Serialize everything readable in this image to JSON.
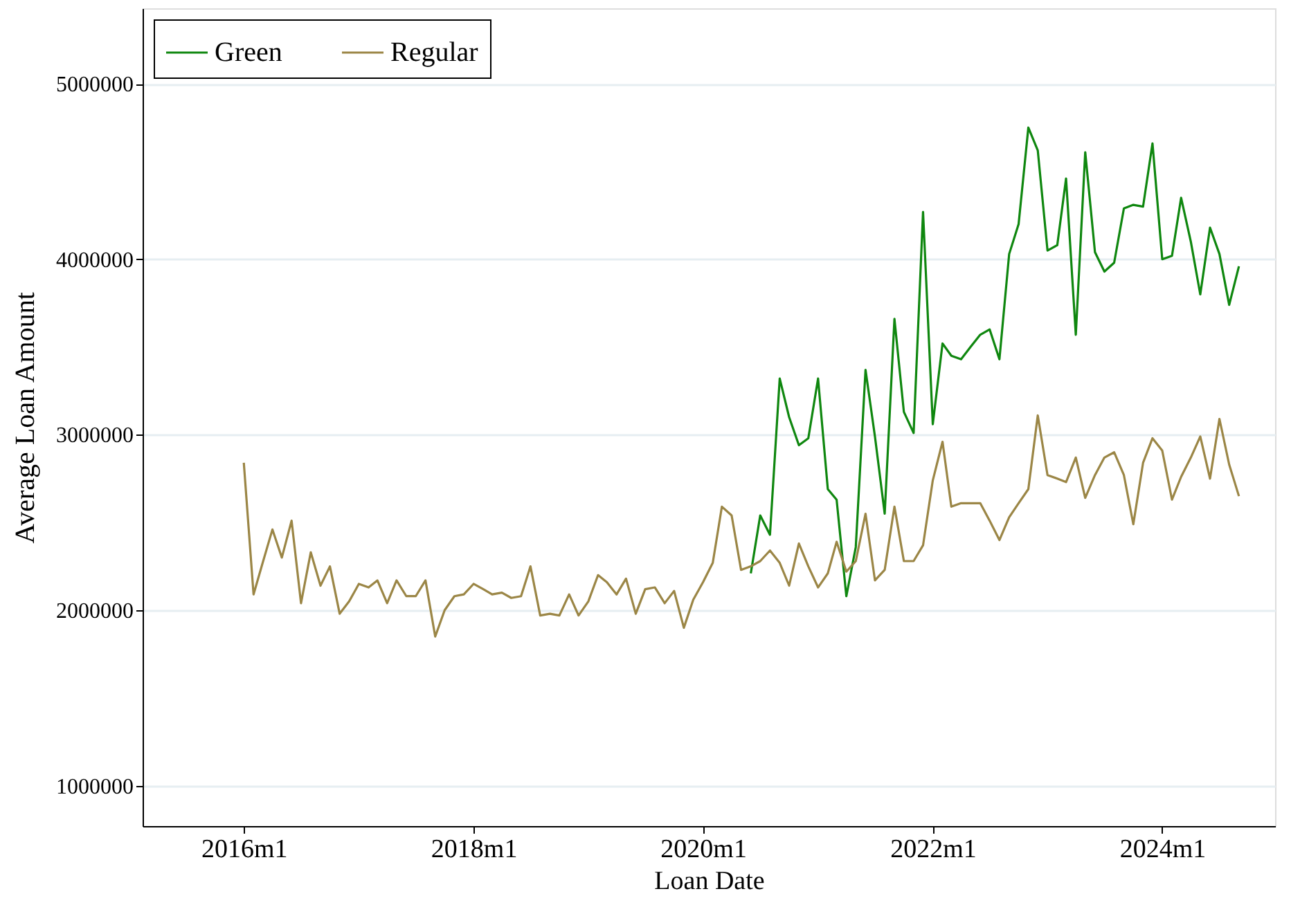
{
  "chart_data": {
    "type": "line",
    "xlabel": "Loan Date",
    "ylabel": "Average Loan Amount",
    "xlim": [
      "2015-02-13",
      "2024-12-25"
    ],
    "xticks": [
      {
        "value": "2016-01",
        "label": "2016m1"
      },
      {
        "value": "2018-01",
        "label": "2018m1"
      },
      {
        "value": "2020-01",
        "label": "2020m1"
      },
      {
        "value": "2022-01",
        "label": "2022m1"
      },
      {
        "value": "2024-01",
        "label": "2024m1"
      }
    ],
    "ylim": [
      770000,
      5430000
    ],
    "yticks": [
      1000000,
      2000000,
      3000000,
      4000000,
      5000000
    ],
    "grid": "y",
    "legend": "top left",
    "line_style": "solid",
    "marker": "none",
    "series": [
      {
        "name": "Green",
        "color": "#0f870f",
        "x": [
          "2020-06",
          "2020-07",
          "2020-08",
          "2020-09",
          "2020-10",
          "2020-11",
          "2020-12",
          "2021-01",
          "2021-02",
          "2021-03",
          "2021-04",
          "2021-05",
          "2021-06",
          "2021-07",
          "2021-08",
          "2021-09",
          "2021-10",
          "2021-11",
          "2021-12",
          "2022-01",
          "2022-02",
          "2022-03",
          "2022-04",
          "2022-05",
          "2022-06",
          "2022-07",
          "2022-08",
          "2022-09",
          "2022-10",
          "2022-11",
          "2022-12",
          "2023-01",
          "2023-02",
          "2023-03",
          "2023-04",
          "2023-05",
          "2023-06",
          "2023-07",
          "2023-08",
          "2023-09",
          "2023-10",
          "2023-11",
          "2023-12",
          "2024-01",
          "2024-02",
          "2024-03",
          "2024-04",
          "2024-05",
          "2024-06",
          "2024-07",
          "2024-08",
          "2024-09"
        ],
        "values": [
          2210000,
          2540000,
          2430000,
          3320000,
          3100000,
          2940000,
          2980000,
          3320000,
          2690000,
          2630000,
          2080000,
          2360000,
          3370000,
          2990000,
          2550000,
          3660000,
          3130000,
          3010000,
          4270000,
          3060000,
          3520000,
          3450000,
          3430000,
          3500000,
          3570000,
          3600000,
          3430000,
          4030000,
          4200000,
          4750000,
          4620000,
          4050000,
          4080000,
          4460000,
          3570000,
          4610000,
          4040000,
          3930000,
          3980000,
          4290000,
          4310000,
          4300000,
          4660000,
          4000000,
          4020000,
          4350000,
          4100000,
          3800000,
          4180000,
          4030000,
          3740000,
          3960000
        ]
      },
      {
        "name": "Regular",
        "color": "#9b8646",
        "x": [
          "2016-01",
          "2016-02",
          "2016-03",
          "2016-04",
          "2016-05",
          "2016-06",
          "2016-07",
          "2016-08",
          "2016-09",
          "2016-10",
          "2016-11",
          "2016-12",
          "2017-01",
          "2017-02",
          "2017-03",
          "2017-04",
          "2017-05",
          "2017-06",
          "2017-07",
          "2017-08",
          "2017-09",
          "2017-10",
          "2017-11",
          "2017-12",
          "2018-01",
          "2018-02",
          "2018-03",
          "2018-04",
          "2018-05",
          "2018-06",
          "2018-07",
          "2018-08",
          "2018-09",
          "2018-10",
          "2018-11",
          "2018-12",
          "2019-01",
          "2019-02",
          "2019-03",
          "2019-04",
          "2019-05",
          "2019-06",
          "2019-07",
          "2019-08",
          "2019-09",
          "2019-10",
          "2019-11",
          "2019-12",
          "2020-01",
          "2020-02",
          "2020-03",
          "2020-04",
          "2020-05",
          "2020-06",
          "2020-07",
          "2020-08",
          "2020-09",
          "2020-10",
          "2020-11",
          "2020-12",
          "2021-01",
          "2021-02",
          "2021-03",
          "2021-04",
          "2021-05",
          "2021-06",
          "2021-07",
          "2021-08",
          "2021-09",
          "2021-10",
          "2021-11",
          "2021-12",
          "2022-01",
          "2022-02",
          "2022-03",
          "2022-04",
          "2022-05",
          "2022-06",
          "2022-07",
          "2022-08",
          "2022-09",
          "2022-10",
          "2022-11",
          "2022-12",
          "2023-01",
          "2023-02",
          "2023-03",
          "2023-04",
          "2023-05",
          "2023-06",
          "2023-07",
          "2023-08",
          "2023-09",
          "2023-10",
          "2023-11",
          "2023-12",
          "2024-01",
          "2024-02",
          "2024-03",
          "2024-04",
          "2024-05",
          "2024-06",
          "2024-07",
          "2024-08",
          "2024-09"
        ],
        "values": [
          2840000,
          2090000,
          2270000,
          2460000,
          2300000,
          2510000,
          2040000,
          2330000,
          2140000,
          2250000,
          1980000,
          2050000,
          2150000,
          2130000,
          2170000,
          2040000,
          2170000,
          2080000,
          2080000,
          2170000,
          1850000,
          2000000,
          2080000,
          2090000,
          2150000,
          2120000,
          2090000,
          2100000,
          2070000,
          2080000,
          2250000,
          1970000,
          1980000,
          1970000,
          2090000,
          1970000,
          2050000,
          2200000,
          2160000,
          2090000,
          2180000,
          1980000,
          2120000,
          2130000,
          2040000,
          2110000,
          1900000,
          2060000,
          2160000,
          2270000,
          2590000,
          2540000,
          2230000,
          2250000,
          2280000,
          2340000,
          2270000,
          2140000,
          2380000,
          2250000,
          2130000,
          2210000,
          2390000,
          2220000,
          2280000,
          2550000,
          2170000,
          2230000,
          2590000,
          2280000,
          2280000,
          2370000,
          2740000,
          2960000,
          2590000,
          2610000,
          2610000,
          2610000,
          2510000,
          2400000,
          2530000,
          2610000,
          2690000,
          3110000,
          2770000,
          2750000,
          2730000,
          2870000,
          2640000,
          2770000,
          2870000,
          2900000,
          2770000,
          2490000,
          2840000,
          2980000,
          2910000,
          2630000,
          2760000,
          2870000,
          2990000,
          2750000,
          3090000,
          2830000,
          2650000
        ]
      }
    ]
  }
}
